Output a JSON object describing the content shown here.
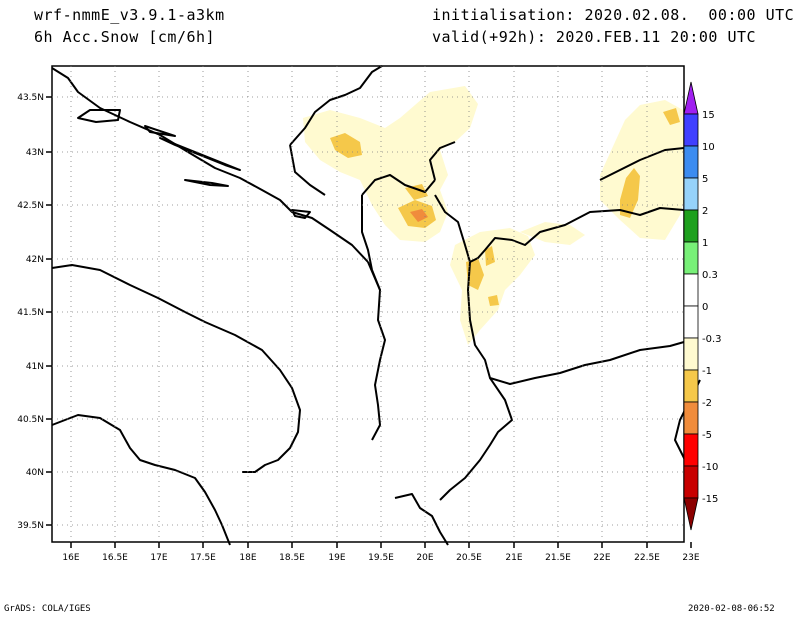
{
  "header": {
    "model": "wrf-nmmE_v3.9.1-a3km",
    "variable": "6h Acc.Snow [cm/6h]",
    "init": "initialisation: 2020.02.08.  00:00 UTC",
    "valid": "valid(+92h): 2020.FEB.11 20:00 UTC"
  },
  "footer": {
    "credit": "GrADS: COLA/IGES",
    "timestamp": "2020-02-08-06:52"
  },
  "map": {
    "lat_labels": [
      "43.5N",
      "43N",
      "42.5N",
      "42N",
      "41.5N",
      "41N",
      "40.5N",
      "40N",
      "39.5N"
    ],
    "lon_labels": [
      "16E",
      "16.5E",
      "17E",
      "17.5E",
      "18E",
      "18.5E",
      "19E",
      "19.5E",
      "20E",
      "20.5E",
      "21E",
      "21.5E",
      "22E",
      "22.5E",
      "23E"
    ]
  },
  "legend": {
    "labels": [
      "15",
      "10",
      "5",
      "2",
      "1",
      "0.3",
      "0",
      "-0.3",
      "-1",
      "-2",
      "-5",
      "-10",
      "-15"
    ],
    "colors": {
      "top_arrow": "#a020f0",
      "c15": "#4040ff",
      "c10": "#3c8cf0",
      "c5": "#96d2fa",
      "c2": "#1ea01e",
      "c1": "#78f078",
      "c03": "#ffffff",
      "n03": "#fffad0",
      "n1": "#f5c84a",
      "n2": "#f08c3c",
      "n5": "#ff0000",
      "n10": "#c80000",
      "bottom_arrow": "#8c0000"
    }
  }
}
